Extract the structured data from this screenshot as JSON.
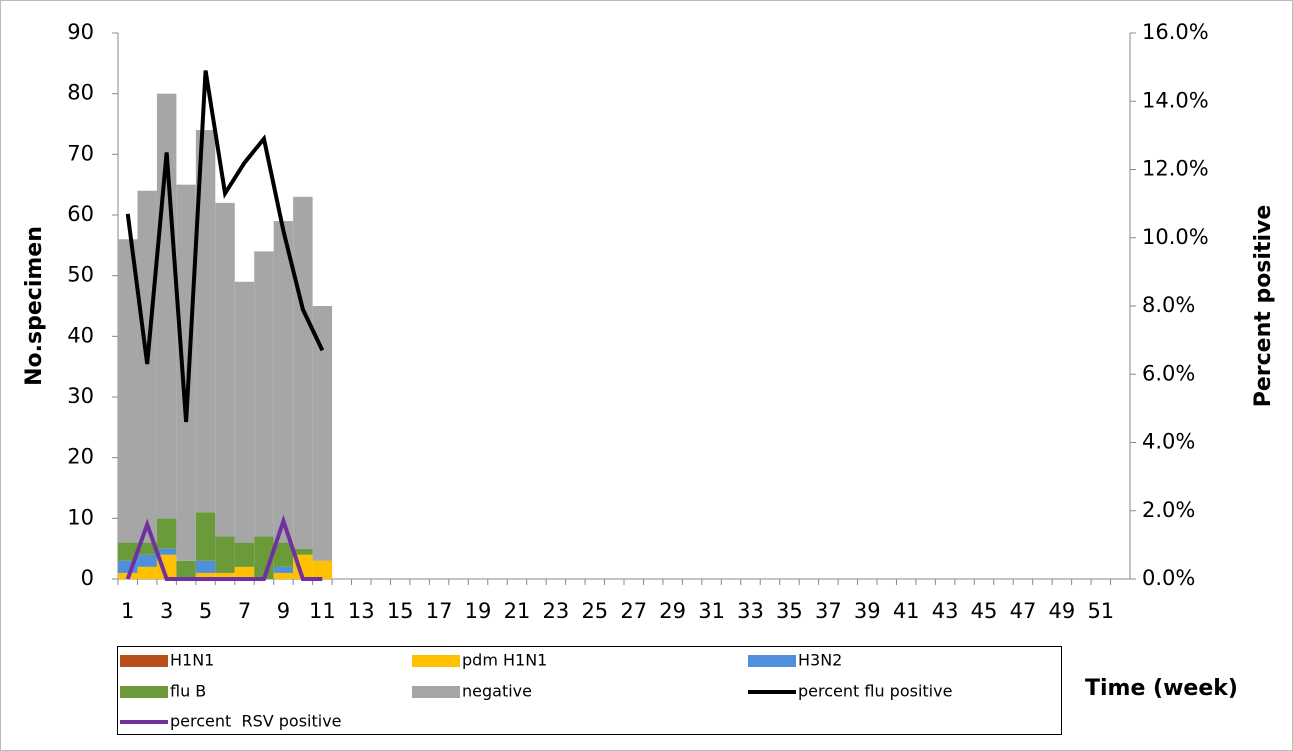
{
  "chart_data": {
    "type": "bar",
    "categories": [
      1,
      null,
      3,
      null,
      5,
      null,
      7,
      null,
      9,
      null,
      11,
      null,
      13,
      null,
      15,
      null,
      17,
      null,
      19,
      null,
      21,
      null,
      23,
      null,
      25,
      null,
      27,
      null,
      29,
      null,
      31,
      null,
      33,
      null,
      35,
      null,
      37,
      null,
      39,
      null,
      41,
      null,
      43,
      null,
      45,
      null,
      47,
      null,
      49,
      null,
      51,
      null
    ],
    "x_label": "Time (week)",
    "y_label": "No.specimen",
    "y2_label": "Percent positive",
    "ylim": [
      0,
      90
    ],
    "yticks": [
      0,
      10,
      20,
      30,
      40,
      50,
      60,
      70,
      80,
      90
    ],
    "y2lim": [
      0,
      16
    ],
    "y2ticks": [
      {
        "value": 0,
        "label": "0.0%"
      },
      {
        "value": 2,
        "label": "2.0%"
      },
      {
        "value": 4,
        "label": "4.0%"
      },
      {
        "value": 6,
        "label": "6.0%"
      },
      {
        "value": 8,
        "label": "8.0%"
      },
      {
        "value": 10,
        "label": "10.0%"
      },
      {
        "value": 12,
        "label": "12.0%"
      },
      {
        "value": 14,
        "label": "14.0%"
      },
      {
        "value": 16,
        "label": "16.0%"
      }
    ],
    "stacked": true,
    "series": [
      {
        "name": "H1N1",
        "color": "#b5501c",
        "values": [
          0,
          0,
          0,
          0,
          0,
          0,
          0,
          0,
          0,
          0,
          0,
          null,
          null,
          null,
          null,
          null,
          null,
          null,
          null,
          null,
          null,
          null,
          null,
          null,
          null,
          null,
          null,
          null,
          null,
          null,
          null,
          null,
          null,
          null,
          null,
          null,
          null,
          null,
          null,
          null,
          null,
          null,
          null,
          null,
          null,
          null,
          null,
          null,
          null,
          null,
          null,
          null
        ]
      },
      {
        "name": "pdm H1N1",
        "color": "#ffc000",
        "values": [
          1,
          2,
          4,
          0,
          1,
          1,
          2,
          0,
          1,
          4,
          3,
          null,
          null,
          null,
          null,
          null,
          null,
          null,
          null,
          null,
          null,
          null,
          null,
          null,
          null,
          null,
          null,
          null,
          null,
          null,
          null,
          null,
          null,
          null,
          null,
          null,
          null,
          null,
          null,
          null,
          null,
          null,
          null,
          null,
          null,
          null,
          null,
          null,
          null,
          null,
          null,
          null
        ]
      },
      {
        "name": "H3N2",
        "color": "#4f8fdc",
        "values": [
          2,
          2,
          1,
          0,
          2,
          0,
          0,
          0,
          1,
          0,
          0,
          null,
          null,
          null,
          null,
          null,
          null,
          null,
          null,
          null,
          null,
          null,
          null,
          null,
          null,
          null,
          null,
          null,
          null,
          null,
          null,
          null,
          null,
          null,
          null,
          null,
          null,
          null,
          null,
          null,
          null,
          null,
          null,
          null,
          null,
          null,
          null,
          null,
          null,
          null,
          null,
          null
        ]
      },
      {
        "name": "flu B",
        "color": "#6a9a3a",
        "values": [
          3,
          2,
          5,
          3,
          8,
          6,
          4,
          7,
          4,
          1,
          0,
          null,
          null,
          null,
          null,
          null,
          null,
          null,
          null,
          null,
          null,
          null,
          null,
          null,
          null,
          null,
          null,
          null,
          null,
          null,
          null,
          null,
          null,
          null,
          null,
          null,
          null,
          null,
          null,
          null,
          null,
          null,
          null,
          null,
          null,
          null,
          null,
          null,
          null,
          null,
          null,
          null
        ]
      },
      {
        "name": "negative",
        "color": "#a6a6a6",
        "values": [
          50,
          58,
          70,
          62,
          63,
          55,
          43,
          47,
          53,
          58,
          42,
          null,
          null,
          null,
          null,
          null,
          null,
          null,
          null,
          null,
          null,
          null,
          null,
          null,
          null,
          null,
          null,
          null,
          null,
          null,
          null,
          null,
          null,
          null,
          null,
          null,
          null,
          null,
          null,
          null,
          null,
          null,
          null,
          null,
          null,
          null,
          null,
          null,
          null,
          null,
          null,
          null
        ]
      },
      {
        "name": "percent flu positive",
        "color": "#000000",
        "type": "line",
        "axis": "y2",
        "values": [
          10.7,
          6.3,
          12.5,
          4.6,
          14.9,
          11.3,
          12.2,
          12.9,
          10.2,
          7.9,
          6.7,
          null,
          null,
          null,
          null,
          null,
          null,
          null,
          null,
          null,
          null,
          null,
          null,
          null,
          null,
          null,
          null,
          null,
          null,
          null,
          null,
          null,
          null,
          null,
          null,
          null,
          null,
          null,
          null,
          null,
          null,
          null,
          null,
          null,
          null,
          null,
          null,
          null,
          null,
          null,
          null,
          null
        ]
      },
      {
        "name": "percent  RSV positive",
        "color": "#7030a0",
        "type": "line",
        "axis": "y2",
        "values": [
          0,
          1.6,
          0,
          0,
          0,
          0,
          0,
          0,
          1.7,
          0,
          0,
          null,
          null,
          null,
          null,
          null,
          null,
          null,
          null,
          null,
          null,
          null,
          null,
          null,
          null,
          null,
          null,
          null,
          null,
          null,
          null,
          null,
          null,
          null,
          null,
          null,
          null,
          null,
          null,
          null,
          null,
          null,
          null,
          null,
          null,
          null,
          null,
          null,
          null,
          null,
          null,
          null
        ]
      }
    ]
  }
}
